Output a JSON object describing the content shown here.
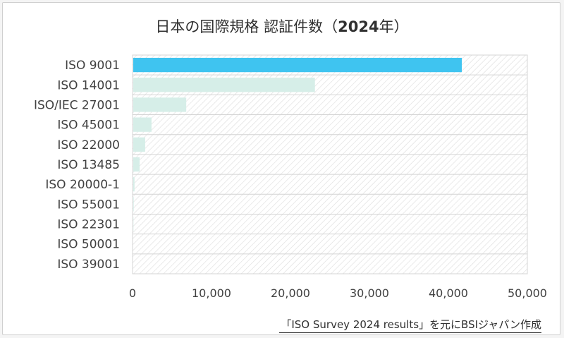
{
  "title": {
    "prefix": "日本の国際規格 認証件数（",
    "year": "2024",
    "suffix": "年）"
  },
  "source_note": "「ISO Survey 2024 results」を元にBSIジャパン作成",
  "colors": {
    "highlight": "#3fc4f0",
    "bar": "#d6eee8",
    "grid": "#d4d4d4",
    "hatch": "#dcdcdc",
    "text": "#404040"
  },
  "chart_data": {
    "type": "bar",
    "orientation": "horizontal",
    "categories": [
      "ISO 9001",
      "ISO 14001",
      "ISO/IEC 27001",
      "ISO 45001",
      "ISO 22000",
      "ISO 13485",
      "ISO 20000-1",
      "ISO 55001",
      "ISO 22301",
      "ISO 50001",
      "ISO 39001"
    ],
    "values": [
      41700,
      23100,
      6800,
      2400,
      1600,
      900,
      250,
      150,
      120,
      80,
      50
    ],
    "highlighted_category": "ISO 9001",
    "xlim": [
      0,
      50000
    ],
    "xticks": [
      0,
      10000,
      20000,
      30000,
      40000,
      50000
    ],
    "xtick_labels": [
      "0",
      "10,000",
      "20,000",
      "30,000",
      "40,000",
      "50,000"
    ],
    "grid": true,
    "legend": false
  }
}
